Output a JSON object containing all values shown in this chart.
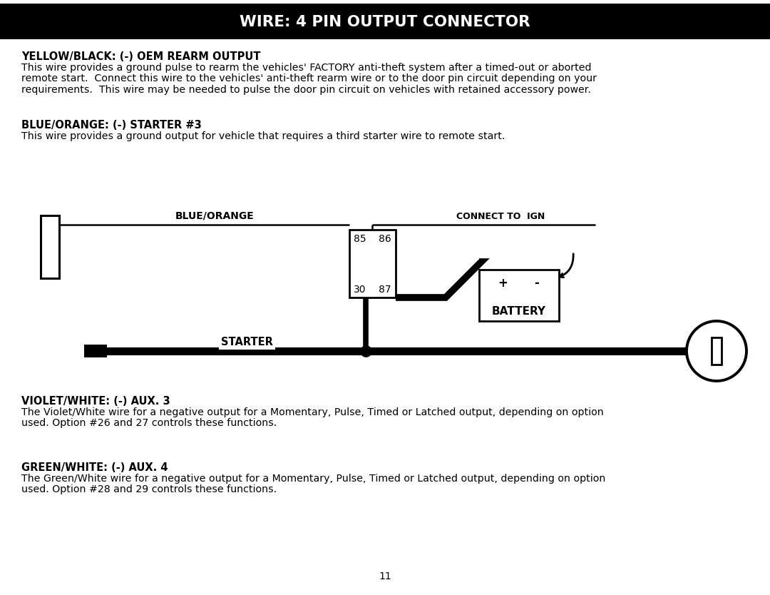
{
  "title": "WIRE: 4 PIN OUTPUT CONNECTOR",
  "title_bg": "#000000",
  "title_fg": "#ffffff",
  "page_bg": "#ffffff",
  "page_number": "11",
  "sections": [
    {
      "heading": "YELLOW/BLACK: (-) OEM REARM OUTPUT",
      "body": "This wire provides a ground pulse to rearm the vehicles' FACTORY anti-theft system after a timed-out or aborted\nremote start.  Connect this wire to the vehicles' anti-theft rearm wire or to the door pin circuit depending on your\nrequirements.  This wire may be needed to pulse the door pin circuit on vehicles with retained accessory power."
    },
    {
      "heading": "BLUE/ORANGE: (-) STARTER #3",
      "body": "This wire provides a ground output for vehicle that requires a third starter wire to remote start."
    }
  ],
  "diagram": {
    "blue_orange_label": "BLUE/ORANGE",
    "connect_to_ign_label": "CONNECT TO  IGN",
    "starter_label": "STARTER",
    "battery_label": "BATTERY",
    "relay_pins": [
      "85",
      "86",
      "30",
      "87"
    ],
    "battery_signs": [
      "+",
      "-"
    ]
  },
  "sections2": [
    {
      "heading": "VIOLET/WHITE: (-) AUX. 3",
      "body": "The Violet/White wire for a negative output for a Momentary, Pulse, Timed or Latched output, depending on option\nused. Option #26 and 27 controls these functions."
    },
    {
      "heading": "GREEN/WHITE: (-) AUX. 4",
      "body": "The Green/White wire for a negative output for a Momentary, Pulse, Timed or Latched output, depending on option\nused. Option #28 and 29 controls these functions."
    }
  ]
}
